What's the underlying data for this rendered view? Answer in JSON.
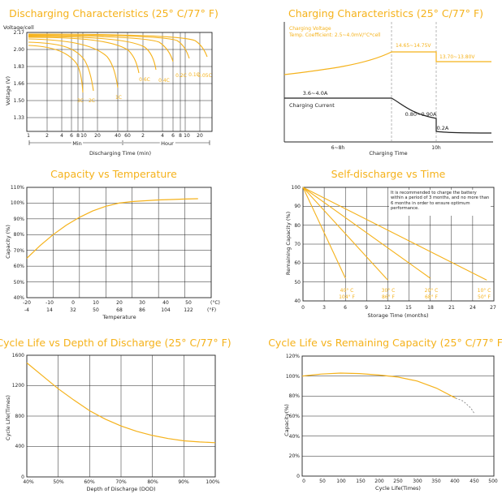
{
  "colors": {
    "accent": "#f5b21b",
    "axis": "#222222",
    "grid": "#222222",
    "text": "#222222",
    "dash": "#888888"
  },
  "chart_data": [
    {
      "type": "line",
      "title": "Discharging Characteristics (25° C/77° F)",
      "ylabel": "Voltage (V)",
      "ylabel_top": "Voltage/cell",
      "xlabel": "Discharging Time (min)",
      "yticks": [
        "2.17",
        "2.00",
        "1.83",
        "1.66",
        "1.50",
        "1.33"
      ],
      "xticks": [
        "1",
        "2",
        "4",
        "6",
        "8",
        "10",
        "20",
        "40",
        "60",
        "2",
        "4",
        "6",
        "8",
        "10",
        "20"
      ],
      "range_labels": [
        "Min",
        "Hour"
      ],
      "curve_labels": [
        "3C",
        "2C",
        "1C",
        "0.6C",
        "0.4C",
        "0.2C",
        "0.1C",
        "0.05C"
      ]
    },
    {
      "type": "line",
      "title": "Charging Characteristics (25° C/77° F)",
      "xlabel": "Charging Time",
      "legend_voltage": "Charging Voltage",
      "legend_coefficient": "Temp. Coefficient: 2.5~4.0mV/°C*cell",
      "voltage_labels": [
        "14.65~14.75V",
        "13.70~13.80V"
      ],
      "current_legend": "Charging Current",
      "current_labels": [
        "3.6~4.0A",
        "0.80~0.90A",
        "0.2A"
      ],
      "xticks": [
        "6~8h",
        "10h"
      ]
    },
    {
      "type": "line",
      "title": "Capacity vs Temperature",
      "ylabel": "Capacity (%)",
      "xlabel": "Temperature",
      "yticks": [
        "110%",
        "100%",
        "90%",
        "80%",
        "70%",
        "60%",
        "50%",
        "40%"
      ],
      "xticks_c": [
        "-20",
        "-10",
        "0",
        "10",
        "20",
        "30",
        "40",
        "50"
      ],
      "xticks_f": [
        "-4",
        "14",
        "32",
        "50",
        "68",
        "86",
        "104",
        "122"
      ],
      "unit_c": "(°C)",
      "unit_f": "(°F)",
      "ylim": [
        40,
        110
      ],
      "x": [
        -20,
        -15,
        -10,
        -5,
        0,
        5,
        10,
        15,
        20,
        25,
        30,
        35,
        40,
        45
      ],
      "values": [
        65,
        73,
        80,
        86,
        91,
        95,
        98,
        100,
        101,
        101.5,
        102,
        102.3,
        102.6,
        102.8
      ]
    },
    {
      "type": "line",
      "title": "Self-discharge vs Time",
      "ylabel": "Remaining Capacity (%)",
      "xlabel": "Storage Time (months)",
      "yticks": [
        "100",
        "90",
        "80",
        "70",
        "60",
        "50",
        "40"
      ],
      "xticks": [
        "0",
        "3",
        "6",
        "9",
        "12",
        "15",
        "18",
        "21",
        "24",
        "27"
      ],
      "note": "It is recommended to charge the battery within a period of 3 months, and no more than 6 months in order to ensure optimum performance.",
      "ylim": [
        40,
        100
      ],
      "xlim": [
        0,
        27
      ],
      "series": [
        {
          "name": "40°C",
          "label_c": "40° C",
          "label_f": "104° F",
          "end_x": 6,
          "end_y": 52
        },
        {
          "name": "30°C",
          "label_c": "30° C",
          "label_f": "86° F",
          "end_x": 12,
          "end_y": 51
        },
        {
          "name": "20°C",
          "label_c": "20° C",
          "label_f": "68° F",
          "end_x": 18,
          "end_y": 52
        },
        {
          "name": "10°C",
          "label_c": "10° C",
          "label_f": "50° F",
          "end_x": 26,
          "end_y": 51
        }
      ]
    },
    {
      "type": "line",
      "title": "Cycle Life vs Depth of Discharge (25° C/77° F)",
      "ylabel": "Cycle Life(Times)",
      "xlabel": "Depth of Discharge (DOD)",
      "yticks": [
        "1600",
        "1200",
        "800",
        "400",
        "0"
      ],
      "xticks": [
        "40%",
        "50%",
        "60%",
        "70%",
        "80%",
        "90%",
        "100%"
      ],
      "ylim": [
        0,
        1600
      ],
      "xlim": [
        40,
        100
      ],
      "x": [
        40,
        45,
        50,
        55,
        60,
        65,
        70,
        75,
        80,
        85,
        90,
        95,
        100
      ],
      "values": [
        1500,
        1330,
        1160,
        1010,
        870,
        760,
        670,
        600,
        545,
        505,
        475,
        460,
        450
      ]
    },
    {
      "type": "line",
      "title": "Cycle Life vs Remaining Capacity (25° C/77° F)",
      "ylabel": "Capacity(%)",
      "xlabel": "Cycle Life(Times)",
      "yticks": [
        "120%",
        "100%",
        "80%",
        "60%",
        "40%",
        "20%",
        "0"
      ],
      "xticks": [
        "0",
        "50",
        "100",
        "150",
        "200",
        "250",
        "300",
        "350",
        "400",
        "450",
        "500"
      ],
      "ylim": [
        0,
        120
      ],
      "xlim": [
        0,
        500
      ],
      "x": [
        0,
        50,
        100,
        150,
        200,
        250,
        300,
        350,
        400
      ],
      "values": [
        100,
        102,
        103,
        102.5,
        101,
        99,
        95,
        88,
        78
      ],
      "dashed_x": [
        400,
        420,
        440,
        450
      ],
      "dashed_values": [
        78,
        75,
        68,
        62
      ]
    }
  ]
}
